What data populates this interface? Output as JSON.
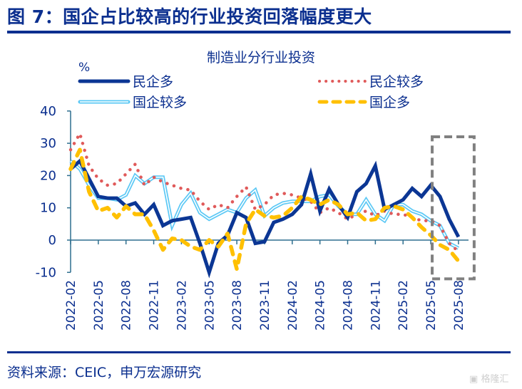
{
  "figure": {
    "title": "图 7：国企占比较高的行业投资回落幅度更大",
    "source": "资料来源：CEIC，申万宏源研究",
    "watermark": "格隆汇",
    "colors": {
      "brand": "#0b2f8f",
      "private_heavy": "#0b3694",
      "private_more": "#e05a5a",
      "state_more": "#5bc8f5",
      "state_heavy": "#ffc000",
      "highlight_box": "#808080",
      "axis": "#2f6f8f"
    }
  },
  "chart_data": {
    "type": "line",
    "title": "制造业分行业投资",
    "ylabel": "%",
    "xlabel": "",
    "ylim": [
      -10,
      40
    ],
    "yticks": [
      -10,
      0,
      10,
      20,
      30,
      40
    ],
    "grid": false,
    "legend_position": "top",
    "x": [
      "2022-02",
      "2022-03",
      "2022-04",
      "2022-05",
      "2022-06",
      "2022-07",
      "2022-08",
      "2022-09",
      "2022-10",
      "2022-11",
      "2022-12",
      "2023-01",
      "2023-02",
      "2023-03",
      "2023-04",
      "2023-05",
      "2023-06",
      "2023-07",
      "2023-08",
      "2023-09",
      "2023-10",
      "2023-11",
      "2023-12",
      "2024-01",
      "2024-02",
      "2024-03",
      "2024-04",
      "2024-05",
      "2024-06",
      "2024-07",
      "2024-08",
      "2024-09",
      "2024-10",
      "2024-11",
      "2024-12",
      "2025-01",
      "2025-02",
      "2025-03",
      "2025-04",
      "2025-05",
      "2025-06",
      "2025-07",
      "2025-08"
    ],
    "xtick_labels": [
      "2022-02",
      "2022-05",
      "2022-08",
      "2022-11",
      "2023-02",
      "2023-05",
      "2023-08",
      "2023-11",
      "2024-02",
      "2024-05",
      "2024-08",
      "2024-11",
      "2025-02",
      "2025-05",
      "2025-08"
    ],
    "series": [
      {
        "name": "民企多",
        "style": "solid-thick",
        "values": [
          22,
          24.5,
          19,
          13.5,
          13,
          13,
          10.5,
          11.5,
          8,
          11,
          4.5,
          6,
          6.5,
          7,
          -1,
          -10,
          -1,
          1.5,
          8.5,
          7,
          -1,
          -0.5,
          5.5,
          6.5,
          8,
          11,
          20.5,
          9,
          15.8,
          11,
          7,
          15,
          17.5,
          23,
          9.5,
          11,
          12.5,
          16,
          13.5,
          17,
          13.5,
          6.5,
          1
        ]
      },
      {
        "name": "民企较多",
        "style": "dotted",
        "values": [
          28,
          33,
          23,
          19,
          17,
          17.5,
          20.5,
          23.5,
          17,
          19.5,
          18,
          17,
          16,
          15.5,
          12,
          9.5,
          11,
          10,
          13.5,
          16.5,
          9.5,
          11,
          14,
          14.5,
          14,
          13,
          12,
          8.5,
          10,
          8.5,
          6.5,
          8,
          9,
          7.5,
          9,
          8,
          8,
          7,
          6,
          6,
          4.5,
          -1,
          -3.5
        ]
      },
      {
        "name": "国企较多",
        "style": "double-outline",
        "values": [
          24.5,
          22,
          17,
          13,
          13,
          12.5,
          14,
          20,
          17.5,
          19.5,
          19.5,
          4.5,
          11,
          14.5,
          8.5,
          6.5,
          8,
          9.5,
          8.5,
          13,
          15.5,
          7.5,
          10,
          11.5,
          12,
          12,
          12,
          13.5,
          14,
          10.5,
          8,
          8,
          12.5,
          8,
          6,
          11,
          11,
          9,
          8,
          6,
          4.5,
          -1,
          -2.5
        ]
      },
      {
        "name": "国企多",
        "style": "dashed",
        "values": [
          22,
          28,
          15,
          9,
          10,
          7,
          10.5,
          8,
          8,
          3,
          -3,
          0.5,
          0,
          -2,
          -3,
          0,
          -2,
          2,
          -9,
          5,
          9.5,
          7.5,
          7,
          7.5,
          10,
          13.5,
          12.5,
          11,
          12.5,
          11,
          8,
          8.5,
          6,
          6.5,
          10,
          10.5,
          9.5,
          7,
          4,
          1.5,
          -1.5,
          -3,
          -6.5
        ]
      }
    ],
    "annotations": [
      {
        "type": "dashed-box",
        "covers": [
          "2025-05",
          "2025-08"
        ],
        "y_range": [
          -12,
          32
        ]
      }
    ]
  }
}
